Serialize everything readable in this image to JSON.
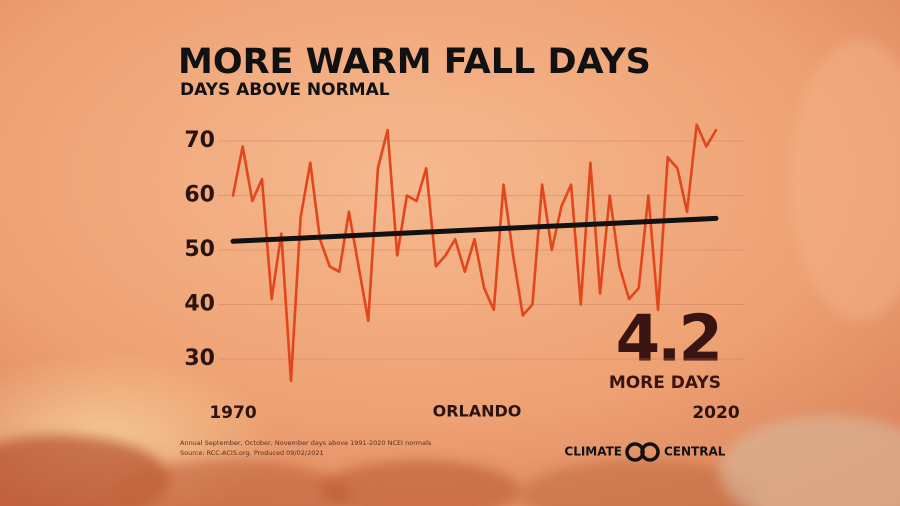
{
  "chart_data": {
    "type": "line",
    "title": "MORE WARM FALL DAYS",
    "subtitle": "DAYS ABOVE NORMAL",
    "location": "ORLANDO",
    "x": [
      1970,
      1971,
      1972,
      1973,
      1974,
      1975,
      1976,
      1977,
      1978,
      1979,
      1980,
      1981,
      1982,
      1983,
      1984,
      1985,
      1986,
      1987,
      1988,
      1989,
      1990,
      1991,
      1992,
      1993,
      1994,
      1995,
      1996,
      1997,
      1998,
      1999,
      2000,
      2001,
      2002,
      2003,
      2004,
      2005,
      2006,
      2007,
      2008,
      2009,
      2010,
      2011,
      2012,
      2013,
      2014,
      2015,
      2016,
      2017,
      2018,
      2019,
      2020
    ],
    "series": [
      {
        "color": "#e2461c",
        "values": [
          60,
          69,
          59,
          63,
          41,
          53,
          26,
          56,
          66,
          52,
          47,
          46,
          57,
          47,
          37,
          65,
          72,
          49,
          60,
          59,
          65,
          47,
          49,
          52,
          46,
          52,
          43,
          39,
          62,
          49,
          38,
          40,
          62,
          50,
          58,
          62,
          40,
          66,
          42,
          60,
          47,
          41,
          43,
          60,
          39,
          67,
          65,
          57,
          73,
          69,
          72
        ]
      }
    ],
    "trend": {
      "color": "#111111",
      "x": [
        1970,
        2020
      ],
      "values": [
        51.6,
        55.8
      ]
    },
    "xlim": [
      1970,
      2020
    ],
    "xticks": [
      1970,
      2020
    ],
    "ylim": [
      25,
      75
    ],
    "yticks": [
      30,
      40,
      50,
      60,
      70
    ],
    "grid": true,
    "annotation_value": 4.2,
    "annotation_text": "MORE DAYS",
    "footnote": [
      "Annual September, October, November days above 1991-2020 NCEI normals",
      "Source: RCC-ACIS.org. Produced 09/02/2021"
    ],
    "brand": [
      "CLIMATE",
      "CENTRAL"
    ]
  }
}
